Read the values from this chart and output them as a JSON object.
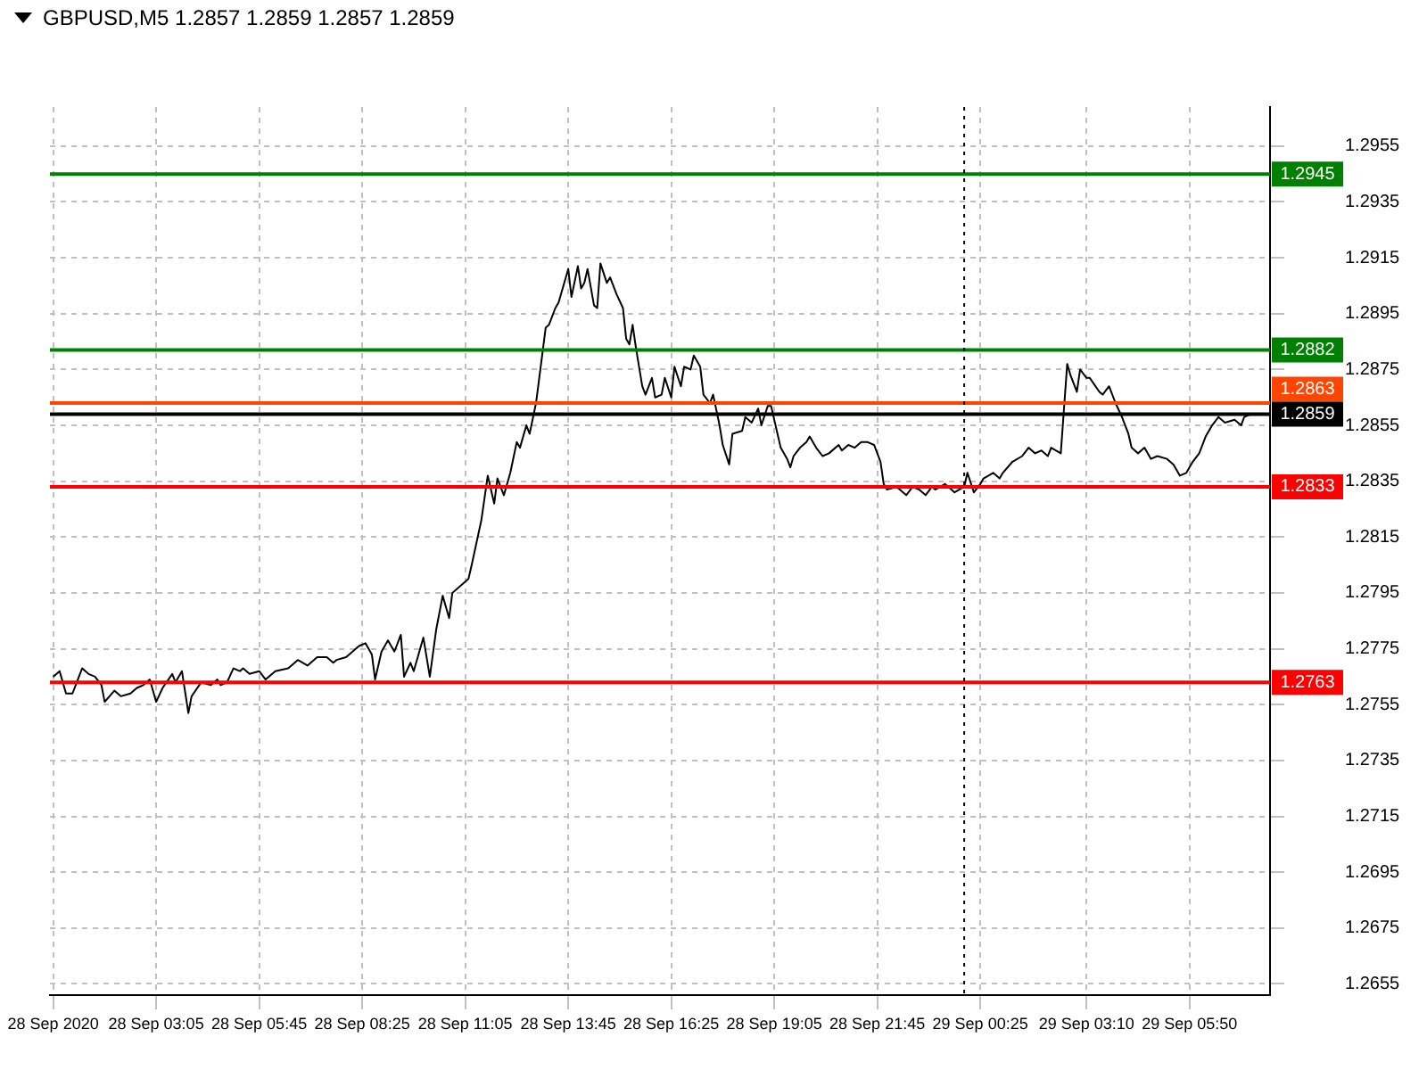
{
  "chart_data": {
    "type": "line",
    "title": "GBPUSD,M5  1.2857 1.2859 1.2857 1.2859",
    "x": [
      "2020-09-28T00:25",
      "2020-09-28T00:35",
      "2020-09-28T00:45",
      "2020-09-28T00:55",
      "2020-09-28T01:00",
      "2020-09-28T01:10",
      "2020-09-28T01:20",
      "2020-09-28T01:30",
      "2020-09-28T01:40",
      "2020-09-28T01:45",
      "2020-09-28T02:00",
      "2020-09-28T02:10",
      "2020-09-28T02:25",
      "2020-09-28T02:35",
      "2020-09-28T02:45",
      "2020-09-28T02:55",
      "2020-09-28T03:05",
      "2020-09-28T03:15",
      "2020-09-28T03:30",
      "2020-09-28T03:35",
      "2020-09-28T03:45",
      "2020-09-28T03:55",
      "2020-09-28T04:00",
      "2020-09-28T04:15",
      "2020-09-28T04:30",
      "2020-09-28T04:40",
      "2020-09-28T04:45",
      "2020-09-28T04:55",
      "2020-09-28T05:05",
      "2020-09-28T05:15",
      "2020-09-28T05:20",
      "2020-09-28T05:30",
      "2020-09-28T05:45",
      "2020-09-28T05:55",
      "2020-09-28T06:10",
      "2020-09-28T06:30",
      "2020-09-28T06:45",
      "2020-09-28T07:00",
      "2020-09-28T07:15",
      "2020-09-28T07:30",
      "2020-09-28T07:40",
      "2020-09-28T07:45",
      "2020-09-28T08:00",
      "2020-09-28T08:20",
      "2020-09-28T08:30",
      "2020-09-28T08:40",
      "2020-09-28T08:45",
      "2020-09-28T08:55",
      "2020-09-28T09:05",
      "2020-09-28T09:15",
      "2020-09-28T09:25",
      "2020-09-28T09:30",
      "2020-09-28T09:40",
      "2020-09-28T09:45",
      "2020-09-28T10:00",
      "2020-09-28T10:10",
      "2020-09-28T10:20",
      "2020-09-28T10:30",
      "2020-09-28T10:40",
      "2020-09-28T10:45",
      "2020-09-28T11:00",
      "2020-09-28T11:10",
      "2020-09-28T11:15",
      "2020-09-28T11:30",
      "2020-09-28T11:40",
      "2020-09-28T11:45",
      "2020-09-28T11:50",
      "2020-09-28T11:55",
      "2020-09-28T12:05",
      "2020-09-28T12:15",
      "2020-09-28T12:25",
      "2020-09-28T12:30",
      "2020-09-28T12:40",
      "2020-09-28T12:45",
      "2020-09-28T12:55",
      "2020-09-28T13:00",
      "2020-09-28T13:10",
      "2020-09-28T13:15",
      "2020-09-28T13:25",
      "2020-09-28T13:30",
      "2020-09-28T13:45",
      "2020-09-28T13:50",
      "2020-09-28T14:00",
      "2020-09-28T14:05",
      "2020-09-28T14:10",
      "2020-09-28T14:15",
      "2020-09-28T14:25",
      "2020-09-28T14:30",
      "2020-09-28T14:35",
      "2020-09-28T14:45",
      "2020-09-28T14:50",
      "2020-09-28T15:00",
      "2020-09-28T15:10",
      "2020-09-28T15:15",
      "2020-09-28T15:20",
      "2020-09-28T15:25",
      "2020-09-28T15:30",
      "2020-09-28T15:40",
      "2020-09-28T15:45",
      "2020-09-28T15:55",
      "2020-09-28T16:00",
      "2020-09-28T16:10",
      "2020-09-28T16:15",
      "2020-09-28T16:25",
      "2020-09-28T16:30",
      "2020-09-28T16:40",
      "2020-09-28T16:45",
      "2020-09-28T16:55",
      "2020-09-28T17:00",
      "2020-09-28T17:10",
      "2020-09-28T17:15",
      "2020-09-28T17:25",
      "2020-09-28T17:30",
      "2020-09-28T17:40",
      "2020-09-28T17:45",
      "2020-09-28T17:55",
      "2020-09-28T18:00",
      "2020-09-28T18:15",
      "2020-09-28T18:20",
      "2020-09-28T18:30",
      "2020-09-28T18:40",
      "2020-09-28T18:45",
      "2020-09-28T18:55",
      "2020-09-28T19:00",
      "2020-09-28T19:10",
      "2020-09-28T19:15",
      "2020-09-28T19:25",
      "2020-09-28T19:30",
      "2020-09-28T19:35",
      "2020-09-28T19:45",
      "2020-09-28T19:55",
      "2020-09-28T20:00",
      "2020-09-28T20:10",
      "2020-09-28T20:20",
      "2020-09-28T20:30",
      "2020-09-28T20:45",
      "2020-09-28T20:50",
      "2020-09-28T21:00",
      "2020-09-28T21:10",
      "2020-09-28T21:20",
      "2020-09-28T21:30",
      "2020-09-28T21:40",
      "2020-09-28T21:50",
      "2020-09-28T21:55",
      "2020-09-28T22:00",
      "2020-09-28T22:15",
      "2020-09-28T22:30",
      "2020-09-28T22:40",
      "2020-09-28T22:50",
      "2020-09-28T23:00",
      "2020-09-28T23:10",
      "2020-09-28T23:15",
      "2020-09-28T23:30",
      "2020-09-28T23:40",
      "2020-09-28T23:45",
      "2020-09-29T00:00",
      "2020-09-29T00:05",
      "2020-09-29T00:15",
      "2020-09-29T00:25",
      "2020-09-29T00:30",
      "2020-09-29T00:45",
      "2020-09-29T00:55",
      "2020-09-29T01:00",
      "2020-09-29T01:15",
      "2020-09-29T01:30",
      "2020-09-29T01:40",
      "2020-09-29T01:50",
      "2020-09-29T02:00",
      "2020-09-29T02:10",
      "2020-09-29T02:15",
      "2020-09-29T02:30",
      "2020-09-29T02:40",
      "2020-09-29T02:45",
      "2020-09-29T02:55",
      "2020-09-29T03:00",
      "2020-09-29T03:10",
      "2020-09-29T03:15",
      "2020-09-29T03:30",
      "2020-09-29T03:35",
      "2020-09-29T03:45",
      "2020-09-29T03:55",
      "2020-09-29T04:05",
      "2020-09-29T04:15",
      "2020-09-29T04:20",
      "2020-09-29T04:30",
      "2020-09-29T04:40",
      "2020-09-29T04:50",
      "2020-09-29T05:00",
      "2020-09-29T05:15",
      "2020-09-29T05:25",
      "2020-09-29T05:35",
      "2020-09-29T05:45",
      "2020-09-29T05:55",
      "2020-09-29T06:05",
      "2020-09-29T06:15",
      "2020-09-29T06:25",
      "2020-09-29T06:35",
      "2020-09-29T06:45",
      "2020-09-29T07:00",
      "2020-09-29T07:10",
      "2020-09-29T07:15",
      "2020-09-29T07:25"
    ],
    "series": [
      {
        "color": "#000000",
        "values": [
          1.2765,
          1.2767,
          1.2759,
          1.2759,
          1.2762,
          1.2768,
          1.2766,
          1.2765,
          1.2762,
          1.2756,
          1.276,
          1.2758,
          1.2759,
          1.2761,
          1.2762,
          1.2764,
          1.2756,
          1.2761,
          1.2766,
          1.2763,
          1.2767,
          1.2752,
          1.2758,
          1.2763,
          1.2762,
          1.2764,
          1.2762,
          1.2763,
          1.2768,
          1.2767,
          1.2768,
          1.2766,
          1.2767,
          1.2764,
          1.2767,
          1.2768,
          1.2771,
          1.2769,
          1.2772,
          1.2772,
          1.277,
          1.2771,
          1.2772,
          1.2776,
          1.2777,
          1.2773,
          1.2764,
          1.2774,
          1.2778,
          1.2774,
          1.278,
          1.2765,
          1.277,
          1.2767,
          1.2779,
          1.2765,
          1.2782,
          1.2794,
          1.2786,
          1.2795,
          1.2798,
          1.28,
          1.2805,
          1.2821,
          1.2837,
          1.2832,
          1.2827,
          1.2836,
          1.283,
          1.2838,
          1.2849,
          1.2847,
          1.2855,
          1.2852,
          1.2863,
          1.2872,
          1.289,
          1.2891,
          1.2897,
          1.2899,
          1.2911,
          1.2901,
          1.2912,
          1.2904,
          1.2906,
          1.2911,
          1.2898,
          1.2897,
          1.2913,
          1.2906,
          1.2908,
          1.2902,
          1.2897,
          1.2886,
          1.2884,
          1.2891,
          1.2883,
          1.2869,
          1.2866,
          1.2872,
          1.2865,
          1.2866,
          1.2872,
          1.2865,
          1.2876,
          1.2869,
          1.2876,
          1.2875,
          1.288,
          1.2876,
          1.2866,
          1.2863,
          1.2866,
          1.2855,
          1.2848,
          1.2841,
          1.2852,
          1.2853,
          1.2858,
          1.2856,
          1.2861,
          1.2855,
          1.2862,
          1.2862,
          1.2852,
          1.2847,
          1.2843,
          1.284,
          1.2844,
          1.2847,
          1.2849,
          1.2851,
          1.2847,
          1.2844,
          1.2845,
          1.2848,
          1.2846,
          1.2848,
          1.2847,
          1.2849,
          1.2849,
          1.2848,
          1.2842,
          1.2834,
          1.2832,
          1.2833,
          1.283,
          1.2833,
          1.2832,
          1.283,
          1.2833,
          1.2832,
          1.2834,
          1.2832,
          1.2831,
          1.2833,
          1.2838,
          1.2831,
          1.2834,
          1.2836,
          1.2838,
          1.2836,
          1.2838,
          1.2842,
          1.2844,
          1.2847,
          1.2845,
          1.2846,
          1.2844,
          1.2847,
          1.2845,
          1.2877,
          1.2873,
          1.2867,
          1.2875,
          1.2872,
          1.2872,
          1.2867,
          1.2866,
          1.2869,
          1.2863,
          1.2858,
          1.2852,
          1.2847,
          1.2845,
          1.2847,
          1.2843,
          1.2844,
          1.2843,
          1.2841,
          1.2837,
          1.2838,
          1.2842,
          1.2845,
          1.2851,
          1.2855,
          1.2858,
          1.2856,
          1.2857,
          1.2855,
          1.2858,
          1.2859
        ]
      }
    ],
    "xlim": [
      "2020-09-28T00:20",
      "2020-09-29T07:55"
    ],
    "xticks": [
      {
        "value": "2020-09-28T00:25",
        "label": "28 Sep 2020"
      },
      {
        "value": "2020-09-28T03:05",
        "label": "28 Sep 03:05"
      },
      {
        "value": "2020-09-28T05:45",
        "label": "28 Sep 05:45"
      },
      {
        "value": "2020-09-28T08:25",
        "label": "28 Sep 08:25"
      },
      {
        "value": "2020-09-28T11:05",
        "label": "28 Sep 11:05"
      },
      {
        "value": "2020-09-28T13:45",
        "label": "28 Sep 13:45"
      },
      {
        "value": "2020-09-28T16:25",
        "label": "28 Sep 16:25"
      },
      {
        "value": "2020-09-28T19:05",
        "label": "28 Sep 19:05"
      },
      {
        "value": "2020-09-28T21:45",
        "label": "28 Sep 21:45"
      },
      {
        "value": "2020-09-29T00:25",
        "label": "29 Sep 00:25"
      },
      {
        "value": "2020-09-29T03:10",
        "label": "29 Sep 03:10"
      },
      {
        "value": "2020-09-29T05:50",
        "label": "29 Sep 05:50"
      }
    ],
    "ylim": [
      1.2651,
      1.2969
    ],
    "yticks": [
      1.2655,
      1.2675,
      1.2695,
      1.2715,
      1.2735,
      1.2755,
      1.2775,
      1.2795,
      1.2815,
      1.2835,
      1.2855,
      1.2875,
      1.2895,
      1.2915,
      1.2935,
      1.2955
    ],
    "ref_lines": [
      {
        "axis": "y",
        "value": 1.2945,
        "label": "1.2945",
        "color": "#008000"
      },
      {
        "axis": "y",
        "value": 1.2882,
        "label": "1.2882",
        "color": "#008000"
      },
      {
        "axis": "y",
        "value": 1.2863,
        "label": "1.2863",
        "color": "#ff4500"
      },
      {
        "axis": "y",
        "value": 1.2859,
        "label": "1.2859",
        "color": "#000000"
      },
      {
        "axis": "y",
        "value": 1.2833,
        "label": "1.2833",
        "color": "#ff0000"
      },
      {
        "axis": "y",
        "value": 1.2763,
        "label": "1.2763",
        "color": "#ff0000"
      },
      {
        "axis": "x",
        "value": "2020-09-29T00:00",
        "color": "#000000",
        "line_style": "dotted"
      }
    ],
    "grid": true,
    "legend": false,
    "marker": "none",
    "line_style": "solid"
  }
}
